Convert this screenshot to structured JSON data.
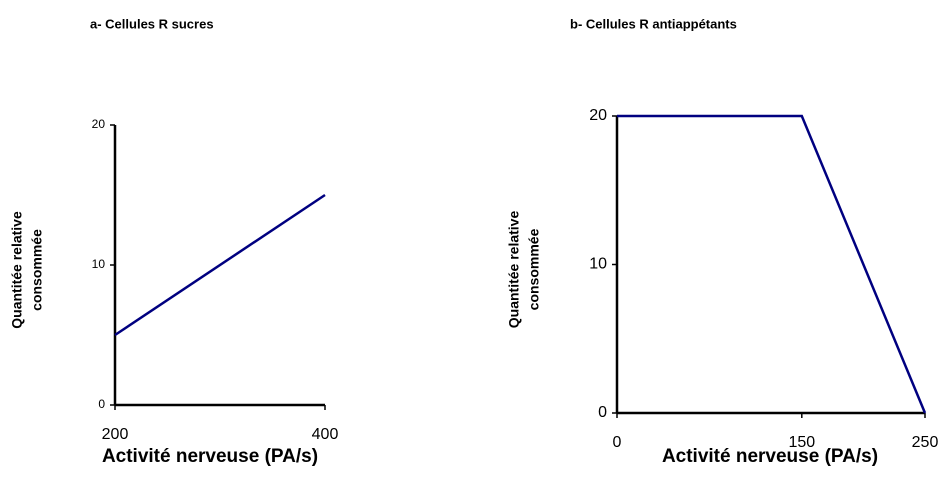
{
  "chart_data": [
    {
      "type": "line",
      "title": "a- Cellules R sucres",
      "xlabel": "Activité nerveuse (PA/s)",
      "ylabel": [
        "Quantitée relative",
        "consommée"
      ],
      "x": [
        200,
        400
      ],
      "values": [
        5,
        15
      ],
      "color": "#000080",
      "xlim": [
        200,
        400
      ],
      "xticks": [
        200,
        400
      ],
      "ylim": [
        0,
        20
      ],
      "yticks": [
        0,
        10,
        20
      ],
      "grid": false
    },
    {
      "type": "line",
      "title": "b- Cellules R antiappétants",
      "xlabel": "Activité nerveuse (PA/s)",
      "ylabel": [
        "Quantitée relative",
        "consommée"
      ],
      "x": [
        0,
        150,
        250
      ],
      "values": [
        20,
        20,
        0
      ],
      "color": "#000080",
      "xlim": [
        0,
        250
      ],
      "xticks": [
        0,
        150,
        250
      ],
      "ylim": [
        0,
        20
      ],
      "yticks": [
        0,
        10,
        20
      ],
      "grid": false
    }
  ]
}
